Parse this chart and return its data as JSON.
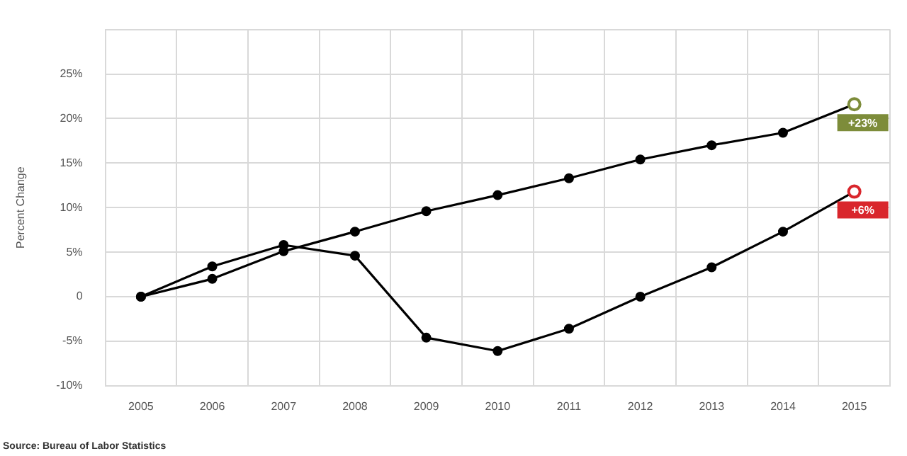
{
  "chart_data": {
    "type": "line",
    "ylabel": "Percent Change",
    "categories": [
      "2005",
      "2006",
      "2007",
      "2008",
      "2009",
      "2010",
      "2011",
      "2012",
      "2013",
      "2014",
      "2015"
    ],
    "series": [
      {
        "color": "#000000",
        "colors": [
          "#000000",
          "#000000",
          "#000000",
          "#000000",
          "#000000",
          "#000000",
          "#000000",
          "#000000",
          "#000000",
          "#000000",
          "#7d8c3a"
        ],
        "values": [
          0,
          2.0,
          5.1,
          7.3,
          9.6,
          11.4,
          13.3,
          15.4,
          17.0,
          18.4,
          21.6
        ]
      },
      {
        "color": "#000000",
        "colors": [
          "#000000",
          "#000000",
          "#000000",
          "#000000",
          "#000000",
          "#000000",
          "#000000",
          "#000000",
          "#000000",
          "#000000",
          "#d9262c"
        ],
        "values": [
          0,
          3.4,
          5.8,
          4.6,
          -4.6,
          -6.1,
          -3.6,
          0,
          3.3,
          7.3,
          11.8
        ]
      }
    ],
    "ylim": [
      -10,
      30
    ],
    "yticks": [
      {
        "value": -10,
        "label": "-10%"
      },
      {
        "value": -5,
        "label": "-5%"
      },
      {
        "value": 0,
        "label": "0"
      },
      {
        "value": 5,
        "label": "5%"
      },
      {
        "value": 10,
        "label": "10%"
      },
      {
        "value": 15,
        "label": "15%"
      },
      {
        "value": 20,
        "label": "20%"
      },
      {
        "value": 25,
        "label": "25%"
      },
      {
        "value": 30,
        "label": null
      }
    ],
    "grid": true,
    "legend": false,
    "marker": "circle",
    "line_style": "solid",
    "annotations": [
      {
        "text": "+23%",
        "x": "2015",
        "y": 21.6
      },
      {
        "text": "+6%",
        "x": "2015",
        "y": 11.8
      },
      "Source: Bureau of Labor Statistics"
    ]
  }
}
